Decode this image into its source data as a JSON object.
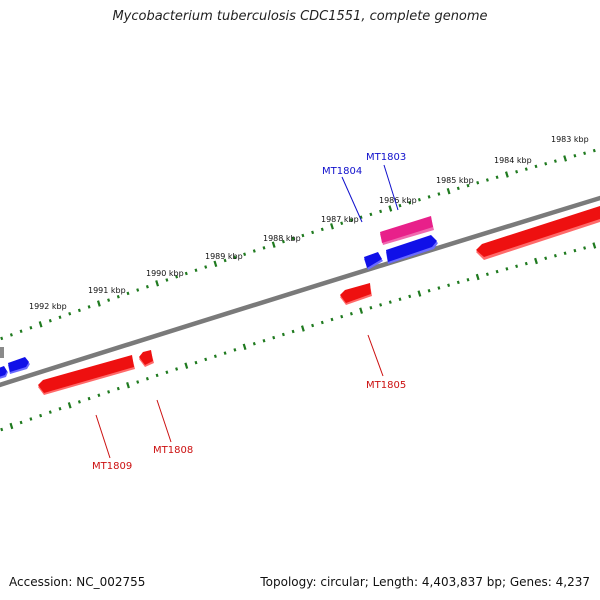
{
  "title": "Mycobacterium tuberculosis CDC1551, complete genome",
  "footer": {
    "accession": "Accession: NC_002755",
    "summary": "Topology: circular; Length: 4,403,837 bp; Genes: 4,237"
  },
  "colors": {
    "backbone": "#7a7a7a",
    "ticks": "#1f7a1f",
    "forward_gene": "#1010e8",
    "reverse_gene": "#ee1010",
    "highlight_gene": "#e8208a",
    "forward_label": "#1010cc",
    "reverse_label": "#cc1010"
  },
  "scale_labels": [
    "1983 kbp",
    "1984 kbp",
    "1985 kbp",
    "1986 kbp",
    "1987 kbp",
    "1988 kbp",
    "1989 kbp",
    "1990 kbp",
    "1991 kbp",
    "1992 kbp"
  ],
  "gene_labels": {
    "mt1803": "MT1803",
    "mt1804": "MT1804",
    "mt1805": "MT1805",
    "mt1808": "MT1808",
    "mt1809": "MT1809"
  }
}
